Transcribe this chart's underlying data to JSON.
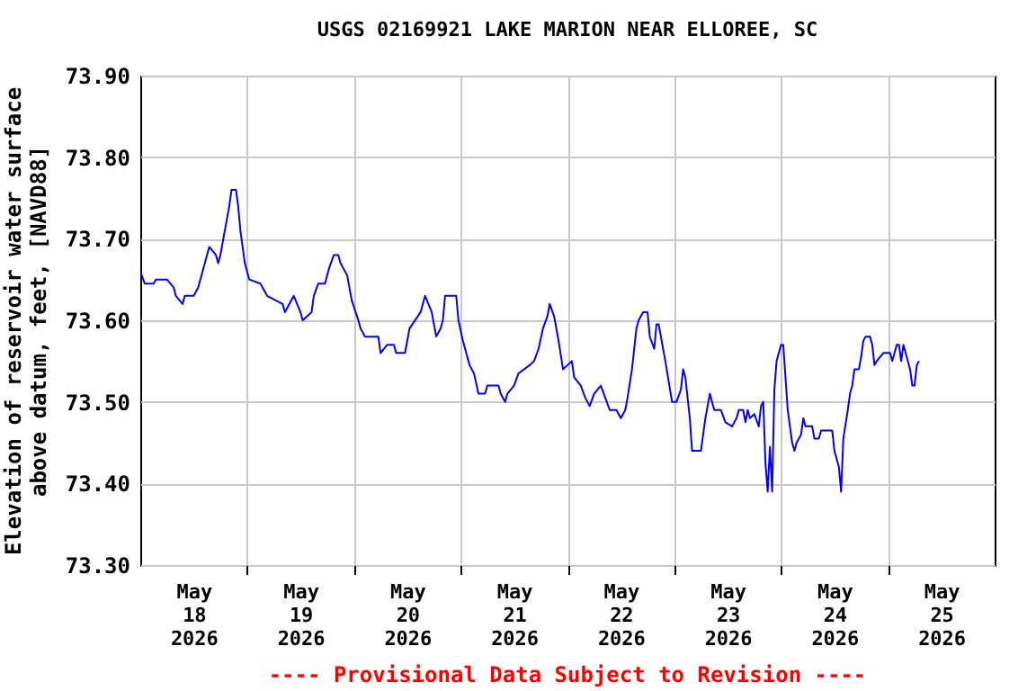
{
  "chart_data": {
    "type": "line",
    "title": "USGS 02169921 LAKE MARION NEAR ELLOREE, SC",
    "ylabel": "Elevation of reservoir water surface\nabove datum, feet, [NAVD88]",
    "annotations": [
      "---- Provisional Data Subject to Revision ----"
    ],
    "x": [
      "2026-05-18T00:00",
      "2026-05-18T01:00",
      "2026-05-18T03:00",
      "2026-05-18T03:30",
      "2026-05-18T06:00",
      "2026-05-18T07:30",
      "2026-05-18T08:00",
      "2026-05-18T09:30",
      "2026-05-18T10:00",
      "2026-05-18T12:00",
      "2026-05-18T13:00",
      "2026-05-18T15:00",
      "2026-05-18T15:30",
      "2026-05-18T17:00",
      "2026-05-18T17:30",
      "2026-05-18T18:00",
      "2026-05-18T19:00",
      "2026-05-18T20:00",
      "2026-05-18T20:30",
      "2026-05-18T21:30",
      "2026-05-18T22:00",
      "2026-05-18T22:30",
      "2026-05-18T23:30",
      "2026-05-19T00:30",
      "2026-05-19T03:00",
      "2026-05-19T04:30",
      "2026-05-19T08:00",
      "2026-05-19T08:30",
      "2026-05-19T10:30",
      "2026-05-19T12:00",
      "2026-05-19T12:30",
      "2026-05-19T14:30",
      "2026-05-19T15:00",
      "2026-05-19T16:00",
      "2026-05-19T17:30",
      "2026-05-19T18:30",
      "2026-05-19T19:30",
      "2026-05-19T20:30",
      "2026-05-19T21:00",
      "2026-05-19T22:30",
      "2026-05-19T23:30",
      "2026-05-20T01:00",
      "2026-05-20T01:30",
      "2026-05-20T02:30",
      "2026-05-20T05:30",
      "2026-05-20T06:00",
      "2026-05-20T07:30",
      "2026-05-20T09:00",
      "2026-05-20T09:30",
      "2026-05-20T11:30",
      "2026-05-20T12:30",
      "2026-05-20T15:00",
      "2026-05-20T16:00",
      "2026-05-20T17:30",
      "2026-05-20T18:30",
      "2026-05-20T19:30",
      "2026-05-20T20:00",
      "2026-05-20T20:30",
      "2026-05-20T23:00",
      "2026-05-20T23:30",
      "2026-05-21T00:30",
      "2026-05-21T02:00",
      "2026-05-21T03:00",
      "2026-05-21T04:00",
      "2026-05-21T05:30",
      "2026-05-21T06:00",
      "2026-05-21T08:30",
      "2026-05-21T09:00",
      "2026-05-21T10:00",
      "2026-05-21T10:30",
      "2026-05-21T12:00",
      "2026-05-21T13:00",
      "2026-05-21T15:30",
      "2026-05-21T16:30",
      "2026-05-21T17:30",
      "2026-05-21T18:30",
      "2026-05-21T19:30",
      "2026-05-21T20:00",
      "2026-05-21T21:00",
      "2026-05-21T22:00",
      "2026-05-21T23:00",
      "2026-05-22T00:00",
      "2026-05-22T01:00",
      "2026-05-22T01:30",
      "2026-05-22T03:00",
      "2026-05-22T04:00",
      "2026-05-22T05:00",
      "2026-05-22T06:00",
      "2026-05-22T07:30",
      "2026-05-22T08:30",
      "2026-05-22T09:30",
      "2026-05-22T11:00",
      "2026-05-22T12:00",
      "2026-05-22T13:00",
      "2026-05-22T13:30",
      "2026-05-22T14:30",
      "2026-05-22T15:30",
      "2026-05-22T16:00",
      "2026-05-22T17:00",
      "2026-05-22T18:00",
      "2026-05-22T18:30",
      "2026-05-22T19:30",
      "2026-05-22T20:00",
      "2026-05-22T20:30",
      "2026-05-22T22:00",
      "2026-05-22T23:30",
      "2026-05-23T00:30",
      "2026-05-23T01:30",
      "2026-05-23T02:00",
      "2026-05-23T02:30",
      "2026-05-23T03:00",
      "2026-05-23T03:30",
      "2026-05-23T04:00",
      "2026-05-23T06:00",
      "2026-05-23T06:30",
      "2026-05-23T07:00",
      "2026-05-23T08:00",
      "2026-05-23T08:30",
      "2026-05-23T09:00",
      "2026-05-23T10:30",
      "2026-05-23T11:30",
      "2026-05-23T13:00",
      "2026-05-23T14:00",
      "2026-05-23T14:30",
      "2026-05-23T15:30",
      "2026-05-23T16:00",
      "2026-05-23T16:30",
      "2026-05-23T17:00",
      "2026-05-23T18:00",
      "2026-05-23T19:00",
      "2026-05-23T19:30",
      "2026-05-23T20:00",
      "2026-05-23T20:30",
      "2026-05-23T21:00",
      "2026-05-23T21:30",
      "2026-05-23T22:00",
      "2026-05-23T22:30",
      "2026-05-23T23:00",
      "2026-05-23T23:30",
      "2026-05-24T00:00",
      "2026-05-24T00:30",
      "2026-05-24T01:00",
      "2026-05-24T01:30",
      "2026-05-24T02:30",
      "2026-05-24T03:00",
      "2026-05-24T03:30",
      "2026-05-24T04:30",
      "2026-05-24T05:00",
      "2026-05-24T05:30",
      "2026-05-24T07:00",
      "2026-05-24T07:30",
      "2026-05-24T08:30",
      "2026-05-24T09:00",
      "2026-05-24T11:30",
      "2026-05-24T12:00",
      "2026-05-24T13:00",
      "2026-05-24T13:30",
      "2026-05-24T14:00",
      "2026-05-24T15:00",
      "2026-05-24T15:30",
      "2026-05-24T16:00",
      "2026-05-24T16:30",
      "2026-05-24T17:30",
      "2026-05-24T18:00",
      "2026-05-24T18:30",
      "2026-05-24T19:00",
      "2026-05-24T20:00",
      "2026-05-24T20:30",
      "2026-05-24T21:00",
      "2026-05-24T21:30",
      "2026-05-24T23:00",
      "2026-05-25T00:30",
      "2026-05-25T01:00",
      "2026-05-25T02:00",
      "2026-05-25T02:30",
      "2026-05-25T03:00",
      "2026-05-25T03:30",
      "2026-05-25T04:30",
      "2026-05-25T05:00",
      "2026-05-25T05:30",
      "2026-05-25T06:00",
      "2026-05-25T06:30",
      "2026-05-25T07:00"
    ],
    "series": [
      {
        "color": "#0000ff",
        "values": [
          73.66,
          73.645,
          73.645,
          73.65,
          73.65,
          73.64,
          73.63,
          73.62,
          73.63,
          73.63,
          73.64,
          73.68,
          73.69,
          73.68,
          73.67,
          73.68,
          73.71,
          73.74,
          73.76,
          73.76,
          73.74,
          73.71,
          73.67,
          73.65,
          73.645,
          73.63,
          73.62,
          73.61,
          73.63,
          73.61,
          73.6,
          73.61,
          73.63,
          73.645,
          73.645,
          73.665,
          73.68,
          73.68,
          73.67,
          73.655,
          73.625,
          73.6,
          73.59,
          73.58,
          73.58,
          73.56,
          73.57,
          73.57,
          73.56,
          73.56,
          73.59,
          73.61,
          73.63,
          73.61,
          73.58,
          73.59,
          73.6,
          73.63,
          73.63,
          73.6,
          73.575,
          73.545,
          73.535,
          73.51,
          73.51,
          73.52,
          73.52,
          73.51,
          73.5,
          73.51,
          73.52,
          73.535,
          73.545,
          73.55,
          73.565,
          73.59,
          73.605,
          73.62,
          73.605,
          73.575,
          73.54,
          73.545,
          73.55,
          73.53,
          73.52,
          73.505,
          73.495,
          73.51,
          73.52,
          73.505,
          73.49,
          73.49,
          73.48,
          73.49,
          73.505,
          73.54,
          73.59,
          73.6,
          73.61,
          73.61,
          73.58,
          73.565,
          73.595,
          73.595,
          73.55,
          73.5,
          73.5,
          73.515,
          73.54,
          73.53,
          73.505,
          73.48,
          73.44,
          73.44,
          73.46,
          73.48,
          73.51,
          73.5,
          73.49,
          73.49,
          73.475,
          73.47,
          73.48,
          73.49,
          73.49,
          73.475,
          73.49,
          73.48,
          73.485,
          73.47,
          73.495,
          73.5,
          73.425,
          73.39,
          73.445,
          73.39,
          73.515,
          73.55,
          73.56,
          73.57,
          73.57,
          73.53,
          73.49,
          73.45,
          73.44,
          73.45,
          73.46,
          73.48,
          73.47,
          73.47,
          73.455,
          73.455,
          73.465,
          73.465,
          73.44,
          73.42,
          73.39,
          73.455,
          73.49,
          73.51,
          73.52,
          73.54,
          73.54,
          73.555,
          73.575,
          73.58,
          73.58,
          73.57,
          73.545,
          73.55,
          73.56,
          73.56,
          73.55,
          73.57,
          73.57,
          73.55,
          73.57,
          73.55,
          73.54,
          73.52,
          73.52,
          73.545,
          73.55
        ]
      }
    ],
    "xlim": [
      "2026-05-18T00:00",
      "2026-05-26T00:00"
    ],
    "xticks": [
      {
        "value": "2026-05-18T12:00",
        "label": "May 18 2026"
      },
      {
        "value": "2026-05-19T12:00",
        "label": "May 19 2026"
      },
      {
        "value": "2026-05-20T12:00",
        "label": "May 20 2026"
      },
      {
        "value": "2026-05-21T12:00",
        "label": "May 21 2026"
      },
      {
        "value": "2026-05-22T12:00",
        "label": "May 22 2026"
      },
      {
        "value": "2026-05-23T12:00",
        "label": "May 23 2026"
      },
      {
        "value": "2026-05-24T12:00",
        "label": "May 24 2026"
      },
      {
        "value": "2026-05-25T12:00",
        "label": "May 25 2026"
      },
      {
        "value": "2026-05-19T00:00",
        "label": null
      },
      {
        "value": "2026-05-20T00:00",
        "label": null
      },
      {
        "value": "2026-05-21T00:00",
        "label": null
      },
      {
        "value": "2026-05-22T00:00",
        "label": null
      },
      {
        "value": "2026-05-23T00:00",
        "label": null
      },
      {
        "value": "2026-05-24T00:00",
        "label": null
      },
      {
        "value": "2026-05-25T00:00",
        "label": null
      }
    ],
    "ylim": [
      73.3,
      73.9
    ],
    "yticks": [
      {
        "value": 73.3,
        "label": "73.30"
      },
      {
        "value": 73.4,
        "label": "73.40"
      },
      {
        "value": 73.5,
        "label": "73.50"
      },
      {
        "value": 73.6,
        "label": "73.60"
      },
      {
        "value": 73.7,
        "label": "73.70"
      },
      {
        "value": 73.8,
        "label": "73.80"
      },
      {
        "value": 73.9,
        "label": "73.90"
      }
    ],
    "grid": true,
    "line_style": "solid"
  }
}
